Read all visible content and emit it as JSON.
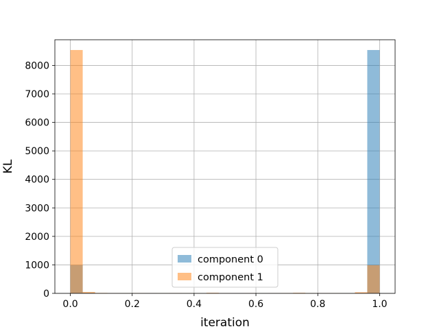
{
  "chart_data": {
    "type": "bar",
    "title": "",
    "xlabel": "iteration",
    "ylabel": "KL",
    "xlim": [
      -0.05,
      1.05
    ],
    "ylim": [
      0,
      8900
    ],
    "grid": true,
    "legend_position": "bottom-center",
    "x_ticks": [
      0.0,
      0.2,
      0.4,
      0.6,
      0.8,
      1.0
    ],
    "x_tick_labels": [
      "0.0",
      "0.2",
      "0.4",
      "0.6",
      "0.8",
      "1.0"
    ],
    "y_ticks": [
      0,
      1000,
      2000,
      3000,
      4000,
      5000,
      6000,
      7000,
      8000
    ],
    "y_tick_labels": [
      "0",
      "1000",
      "2000",
      "3000",
      "4000",
      "5000",
      "6000",
      "7000",
      "8000"
    ],
    "bin_edges": [
      0.0,
      0.04,
      0.08,
      0.12,
      0.16,
      0.2,
      0.24,
      0.28,
      0.32,
      0.36,
      0.4,
      0.44,
      0.48,
      0.52,
      0.56,
      0.6,
      0.64,
      0.68,
      0.72,
      0.76,
      0.8,
      0.84,
      0.88,
      0.92,
      0.96,
      1.0
    ],
    "series": [
      {
        "name": "component 0",
        "color": "#1f77b4",
        "values": [
          990,
          20,
          8,
          8,
          6,
          6,
          12,
          6,
          8,
          4,
          6,
          4,
          8,
          10,
          6,
          8,
          10,
          8,
          6,
          4,
          6,
          4,
          6,
          6,
          8540
        ]
      },
      {
        "name": "component 1",
        "color": "#ff7f0e",
        "values": [
          8540,
          50,
          15,
          10,
          8,
          12,
          10,
          8,
          12,
          8,
          6,
          20,
          8,
          6,
          10,
          6,
          8,
          12,
          20,
          8,
          10,
          8,
          6,
          40,
          990
        ]
      }
    ]
  }
}
